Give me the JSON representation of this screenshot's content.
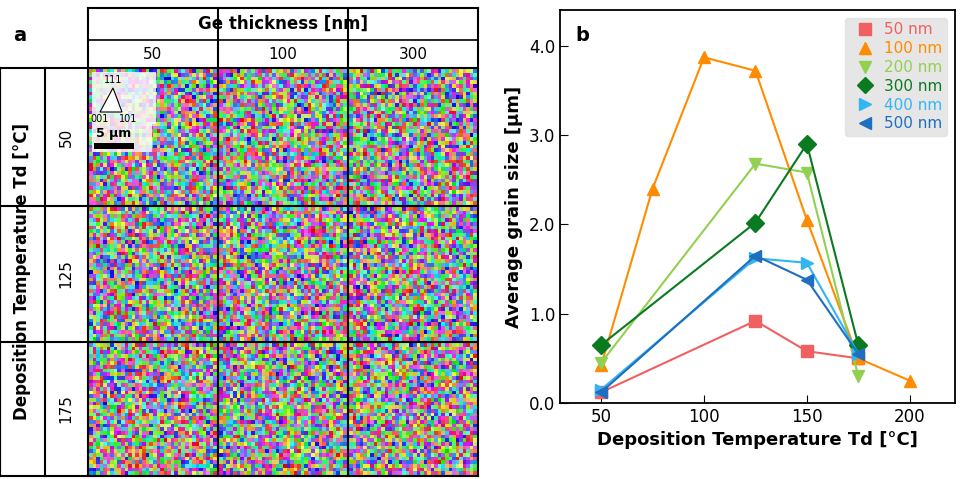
{
  "chart_data": {
    "type": "line",
    "panel_label": "b",
    "x_label": "Deposition Temperature Td [°C]",
    "y_label": "Average grain size [µm]",
    "xlim": [
      30,
      222
    ],
    "xticks": [
      50,
      100,
      150,
      200
    ],
    "ylim": [
      0,
      4.4
    ],
    "yticks": [
      {
        "value": 0,
        "label": "0.0"
      },
      {
        "value": 1,
        "label": "1.0"
      },
      {
        "value": 2,
        "label": "2.0"
      },
      {
        "value": 3,
        "label": "3.0"
      },
      {
        "value": 4,
        "label": "4.0"
      }
    ],
    "legend": "upper right",
    "series": [
      {
        "name": "50 nm",
        "color": "#f06060",
        "marker": "square",
        "x": [
          50,
          125,
          150,
          175
        ],
        "values": [
          0.12,
          0.92,
          0.58,
          0.5
        ]
      },
      {
        "name": "100 nm",
        "color": "#ff8c00",
        "marker": "triangle_up",
        "x": [
          50,
          75,
          100,
          125,
          150,
          175,
          200
        ],
        "values": [
          0.42,
          2.4,
          3.87,
          3.72,
          2.05,
          0.5,
          0.25
        ]
      },
      {
        "name": "200 nm",
        "color": "#92d050",
        "marker": "triangle_down",
        "x": [
          50,
          125,
          150,
          175
        ],
        "values": [
          0.45,
          2.68,
          2.58,
          0.3
        ]
      },
      {
        "name": "300 nm",
        "color": "#0a7a20",
        "marker": "diamond",
        "x": [
          50,
          125,
          150,
          175
        ],
        "values": [
          0.65,
          2.02,
          2.9,
          0.65
        ]
      },
      {
        "name": "400 nm",
        "color": "#33b5f0",
        "marker": "triangle_right",
        "x": [
          50,
          125,
          150,
          175
        ],
        "values": [
          0.15,
          1.62,
          1.57,
          0.55
        ]
      },
      {
        "name": "500 nm",
        "color": "#1f6fc0",
        "marker": "triangle_left",
        "x": [
          50,
          125,
          150,
          175
        ],
        "values": [
          0.12,
          1.65,
          1.38,
          0.55
        ]
      }
    ]
  },
  "panel_a": {
    "panel_label": "a",
    "column_header": "Ge thickness [nm]",
    "columns": [
      "50",
      "100",
      "300"
    ],
    "row_header": "Deposition Temperature Td [°C]",
    "rows": [
      "50",
      "125",
      "175"
    ],
    "color_key": [
      "111",
      "001",
      "101"
    ],
    "scale_bar": "5 µm"
  }
}
